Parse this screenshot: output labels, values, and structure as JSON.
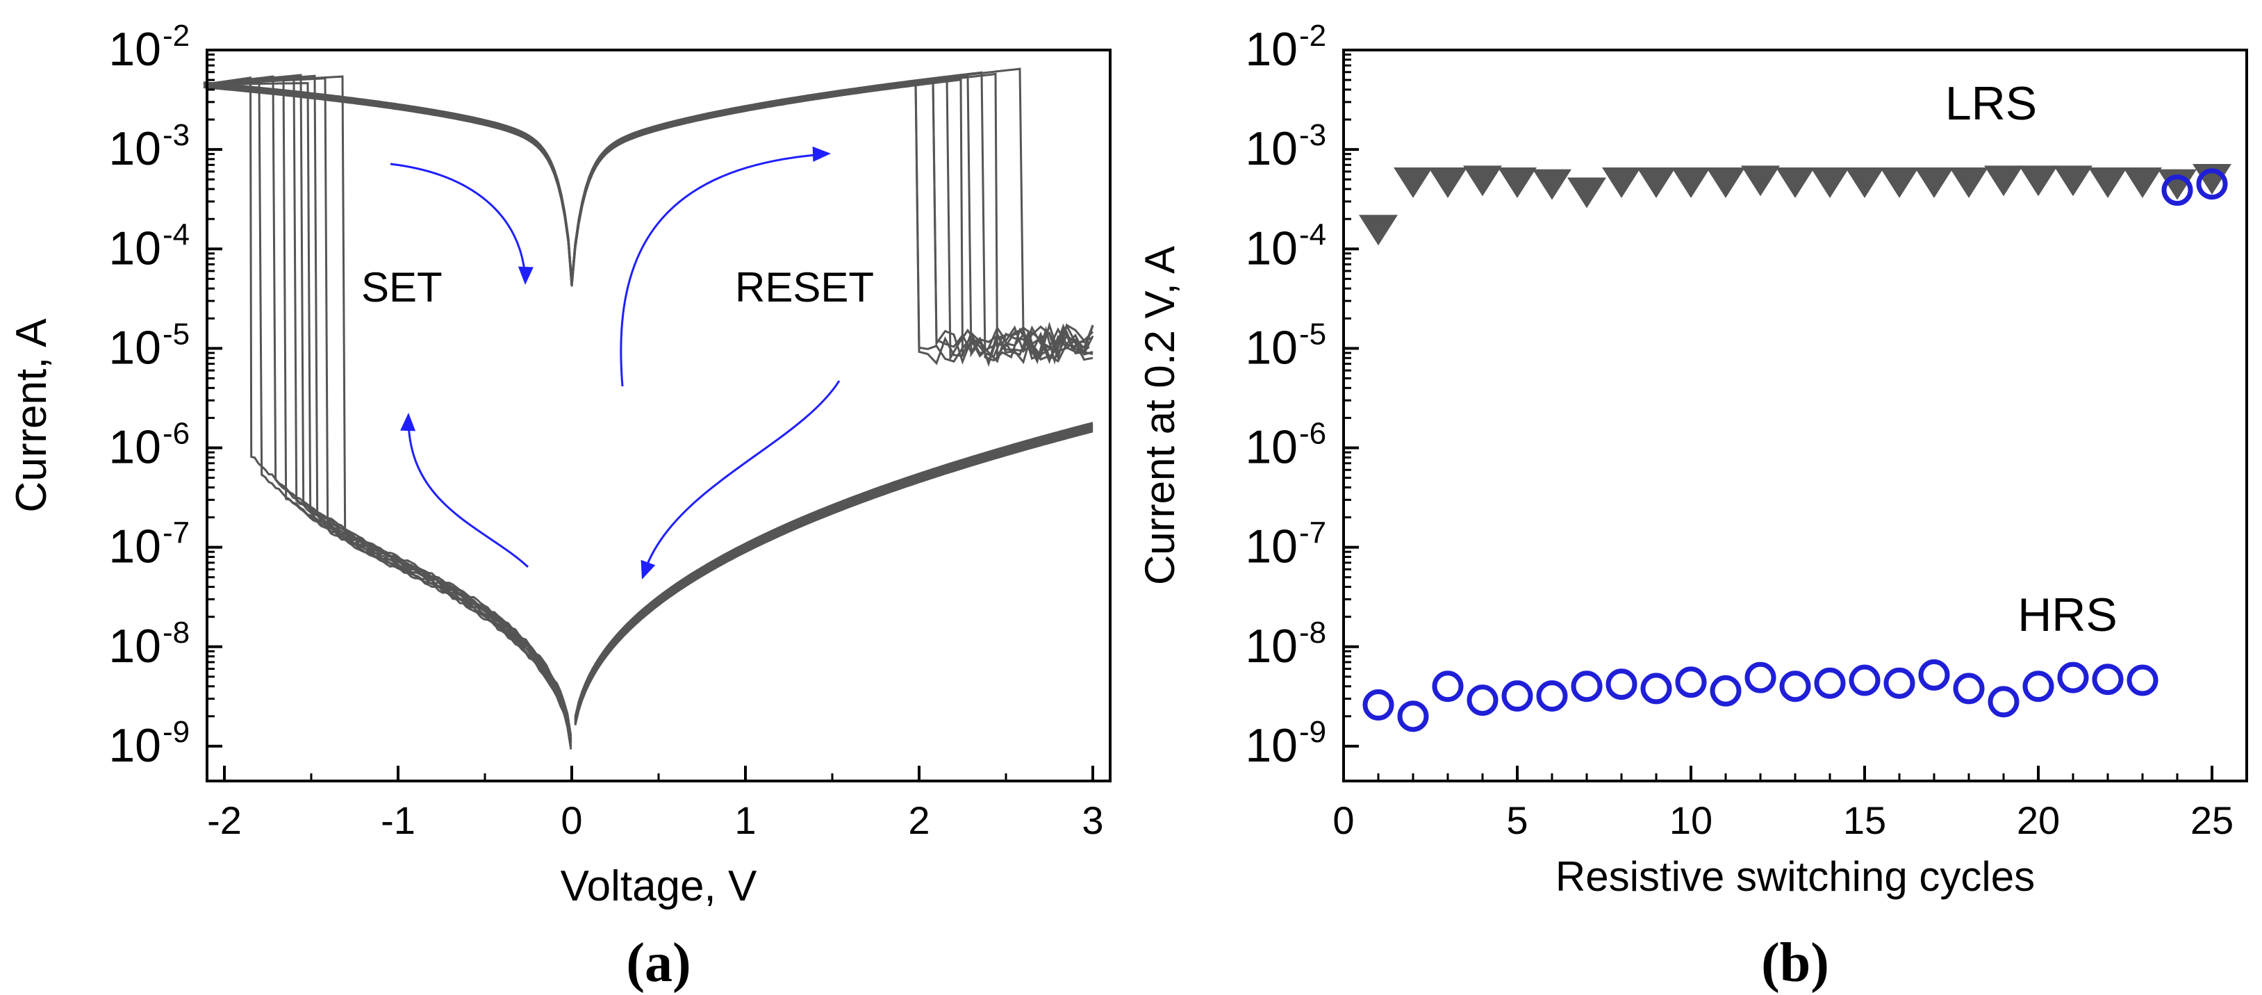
{
  "chart_data": [
    {
      "type": "line",
      "panel_label": "(a)",
      "xlabel": "Voltage, V",
      "ylabel": "Current, A",
      "xlim": [
        -2.1,
        3.1
      ],
      "ylim_exp": [
        -9.35,
        -2
      ],
      "yscale": "log",
      "x_ticks": [
        "-2",
        "-1",
        "0",
        "1",
        "2",
        "3"
      ],
      "x_tick_values": [
        -2,
        -1,
        0,
        1,
        2,
        3
      ],
      "y_tick_base": "10",
      "y_tick_exponents": [
        "-9",
        "-8",
        "-7",
        "-6",
        "-5",
        "-4",
        "-3",
        "-2"
      ],
      "set_voltages": [
        -1.85,
        -1.8,
        -1.72,
        -1.66,
        -1.6,
        -1.56,
        -1.52,
        -1.48,
        -1.42,
        -1.32
      ],
      "reset_voltages": [
        2.0,
        2.1,
        2.18,
        2.25,
        2.3,
        2.38,
        2.45,
        2.6
      ],
      "annotations": [
        "SET",
        "RESET"
      ],
      "series_color": "#555555",
      "arrow_color": "#1f1fff"
    },
    {
      "type": "scatter",
      "panel_label": "(b)",
      "xlabel": "Resistive switching cycles",
      "ylabel": "Current at 0.2 V, A",
      "xlim": [
        0,
        26
      ],
      "ylim_exp": [
        -9.35,
        -2
      ],
      "yscale": "log",
      "x_ticks": [
        "0",
        "5",
        "10",
        "15",
        "20",
        "25"
      ],
      "x_tick_values": [
        0,
        5,
        10,
        15,
        20,
        25
      ],
      "y_tick_base": "10",
      "y_tick_exponents": [
        "-9",
        "-8",
        "-7",
        "-6",
        "-5",
        "-4",
        "-3",
        "-2"
      ],
      "series": [
        {
          "name": "LRS",
          "marker": "triangle-down",
          "color": "#555555",
          "x": [
            1,
            2,
            3,
            4,
            5,
            6,
            7,
            8,
            9,
            10,
            11,
            12,
            13,
            14,
            15,
            16,
            17,
            18,
            19,
            20,
            21,
            22,
            23,
            24,
            25
          ],
          "y": [
            0.00016,
            0.00048,
            0.00048,
            0.0005,
            0.00048,
            0.00046,
            0.00038,
            0.00048,
            0.00048,
            0.00048,
            0.00048,
            0.0005,
            0.00048,
            0.00048,
            0.00048,
            0.00048,
            0.00048,
            0.00048,
            0.0005,
            0.0005,
            0.0005,
            0.00048,
            0.00048,
            0.00046,
            0.00052
          ]
        },
        {
          "name": "HRS",
          "marker": "circle-open",
          "color": "#1f1fd8",
          "x": [
            1,
            2,
            3,
            4,
            5,
            6,
            7,
            8,
            9,
            10,
            11,
            12,
            13,
            14,
            15,
            16,
            17,
            18,
            19,
            20,
            21,
            22,
            23,
            24,
            25
          ],
          "y": [
            2.6e-09,
            2e-09,
            4e-09,
            2.9e-09,
            3.2e-09,
            3.2e-09,
            4e-09,
            4.2e-09,
            3.8e-09,
            4.4e-09,
            3.6e-09,
            4.9e-09,
            4e-09,
            4.3e-09,
            4.6e-09,
            4.3e-09,
            5.2e-09,
            3.8e-09,
            2.8e-09,
            4e-09,
            4.9e-09,
            4.7e-09,
            4.6e-09,
            0.00039,
            0.00045
          ]
        }
      ],
      "annotations": [
        "LRS",
        "HRS"
      ]
    }
  ]
}
